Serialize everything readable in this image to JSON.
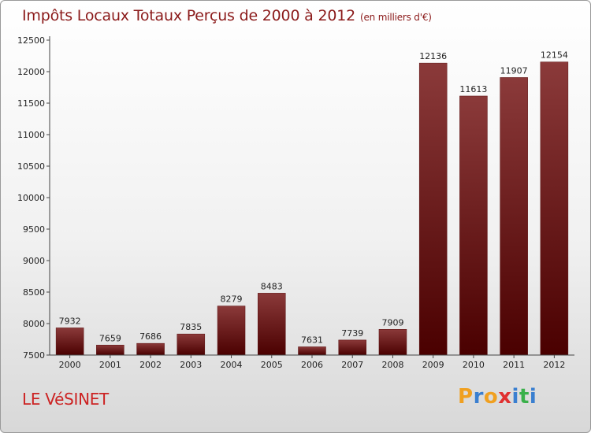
{
  "chart_data": {
    "type": "bar",
    "title": "Impôts Locaux Totaux Perçus de 2000 à 2012",
    "unit_label": "(en milliers d'€)",
    "categories": [
      "2000",
      "2001",
      "2002",
      "2003",
      "2004",
      "2005",
      "2006",
      "2007",
      "2008",
      "2009",
      "2010",
      "2011",
      "2012"
    ],
    "values": [
      7932,
      7659,
      7686,
      7835,
      8279,
      8483,
      7631,
      7739,
      7909,
      12136,
      11613,
      11907,
      12154
    ],
    "value_labels": [
      "7932",
      "7659",
      "7686",
      "7835",
      "8279",
      "8483",
      "7631",
      "7739",
      "7909",
      "12136",
      "11613",
      "11907",
      "12154"
    ],
    "yticks": [
      7500,
      8000,
      8500,
      9000,
      9500,
      10000,
      10500,
      11000,
      11500,
      12000,
      12500
    ],
    "ytick_labels": [
      "7500",
      "8000",
      "8500",
      "9000",
      "9500",
      "10000",
      "10500",
      "11000",
      "11500",
      "12000",
      "12500"
    ],
    "ylim": [
      7500,
      12500
    ],
    "grid": false,
    "bar_color_top": "#8b3a3a",
    "bar_color_bottom": "#4a0000"
  },
  "place": "LE VéSINET",
  "brand": {
    "letters": [
      "P",
      "r",
      "o",
      "x",
      "i",
      "t",
      "i"
    ],
    "colors": [
      "#f0a020",
      "#3a7fd0",
      "#f0a020",
      "#e03030",
      "#3a7fd0",
      "#3ab04a",
      "#3a7fd0"
    ]
  }
}
